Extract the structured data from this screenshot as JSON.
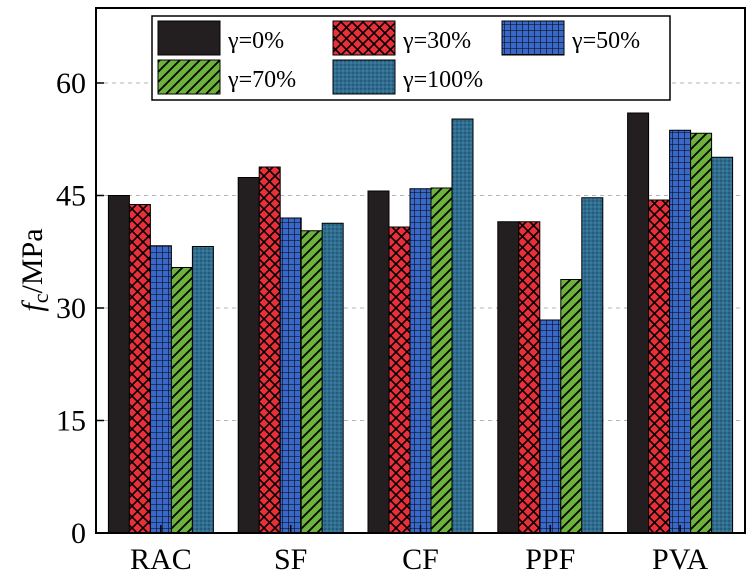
{
  "chart_data": {
    "type": "bar",
    "title": "",
    "xlabel": "",
    "ylabel": "fc/MPa",
    "ylabel_parts": {
      "symbol": "f",
      "subscript": "c",
      "unit": "/MPa"
    },
    "categories": [
      "RAC",
      "SF",
      "CF",
      "PPF",
      "PVA"
    ],
    "ylim": [
      0,
      70
    ],
    "yticks": [
      0,
      15,
      30,
      45,
      60
    ],
    "grid": "dashed gray",
    "legend_position": "top",
    "series": [
      {
        "name": "γ=0%",
        "values": [
          45.0,
          47.4,
          45.6,
          41.5,
          56.0
        ],
        "color": "#231f20",
        "pattern": "solid"
      },
      {
        "name": "γ=30%",
        "values": [
          43.8,
          48.8,
          40.8,
          41.5,
          44.4
        ],
        "color": "#e8303a",
        "pattern": "crosshatch"
      },
      {
        "name": "γ=50%",
        "values": [
          38.3,
          42.0,
          45.9,
          28.4,
          53.7
        ],
        "color": "#3a68c8",
        "pattern": "grid"
      },
      {
        "name": "γ=70%",
        "values": [
          35.4,
          40.3,
          46.0,
          33.8,
          53.3
        ],
        "color": "#6cb23d",
        "pattern": "diagonal"
      },
      {
        "name": "γ=100%",
        "values": [
          38.2,
          41.3,
          55.2,
          44.7,
          50.1
        ],
        "color": "#2f6e90",
        "pattern": "dots"
      }
    ]
  }
}
